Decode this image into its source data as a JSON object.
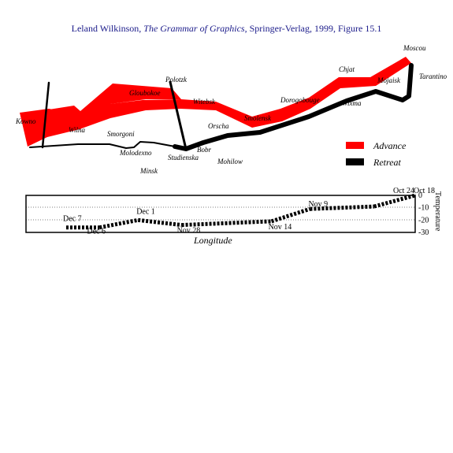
{
  "title": {
    "prefix": "Leland Wilkinson, ",
    "book": "The Grammar of Graphics",
    "suffix": ", Springer-Verlag, 1999, Figure 15.1"
  },
  "chart_data": [
    {
      "type": "map",
      "description": "Minard's march on Moscow: troop path width shows army size",
      "legend": [
        {
          "name": "Advance",
          "color": "#ff0000"
        },
        {
          "name": "Retreat",
          "color": "#000000"
        }
      ],
      "legend_placement": "bottom-right",
      "cities": [
        "Moscou",
        "Tarantino",
        "Chjat",
        "Mojaisk",
        "Wixma",
        "Dorogobouge",
        "Smolensk",
        "Orscha",
        "Mohilow",
        "Bobr",
        "Studienska",
        "Minsk",
        "Molodexno",
        "Smorgoni",
        "Wilna",
        "Kowno",
        "Gloubokoe",
        "Polotzk",
        "Witebsk"
      ]
    },
    {
      "type": "line",
      "xlabel": "Longitude",
      "ylabel": "Temperature",
      "y_ticks": [
        0,
        -10,
        -20,
        -30
      ],
      "ylim": [
        -30,
        0
      ],
      "grid": true,
      "series": [
        {
          "points": [
            {
              "x": 24.0,
              "y": -26,
              "label": "Dec 7"
            },
            {
              "x": 25.3,
              "y": -26,
              "label": "Dec 6"
            },
            {
              "x": 26.8,
              "y": -20,
              "label": "Dec 1"
            },
            {
              "x": 28.5,
              "y": -24,
              "label": "Nov 28"
            },
            {
              "x": 32.0,
              "y": -21,
              "label": "Nov 14"
            },
            {
              "x": 33.5,
              "y": -11,
              "label": "Nov 9"
            },
            {
              "x": 36.0,
              "y": -9,
              "label": ""
            },
            {
              "x": 37.6,
              "y": 0,
              "label": "Oct 24"
            },
            {
              "x": 37.6,
              "y": 0,
              "label": "Oct 18"
            }
          ]
        }
      ]
    }
  ]
}
